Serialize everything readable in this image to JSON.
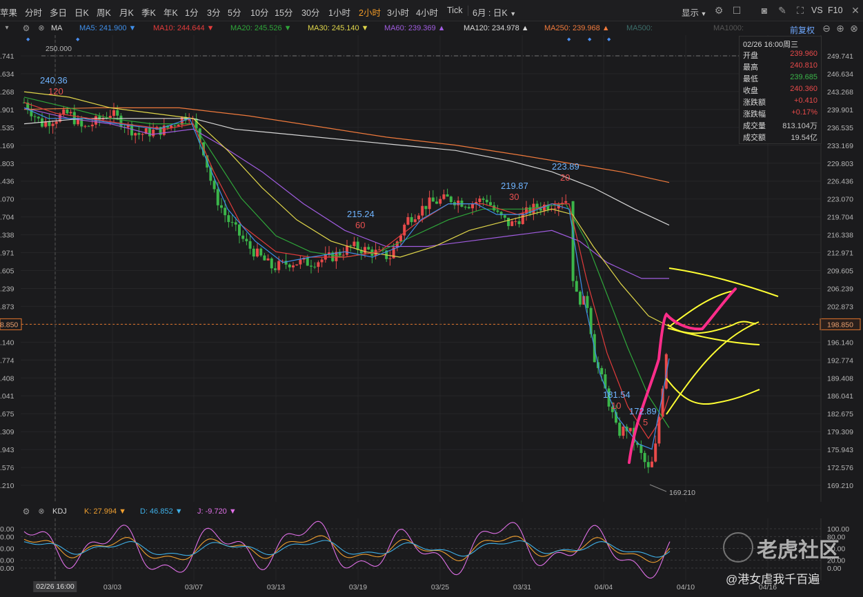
{
  "toolbar": {
    "symbol": "苹果",
    "periods": [
      "分时",
      "多日",
      "日K",
      "周K",
      "月K",
      "季K",
      "年K",
      "1分",
      "3分",
      "5分",
      "10分",
      "15分",
      "30分",
      "1小时",
      "2小时",
      "3小时",
      "4小时",
      "Tick"
    ],
    "active_period": "2小时",
    "range_select": "6月 : 日K",
    "display": "显示",
    "vs_label": "VS",
    "f10_label": "F10"
  },
  "ma_bar": {
    "indicator": "MA",
    "items": [
      {
        "name": "MA5",
        "value": "241.900",
        "color": "#3f8ee8",
        "arrow": "▼"
      },
      {
        "name": "MA10",
        "value": "244.644",
        "color": "#e23b3b",
        "arrow": "▼"
      },
      {
        "name": "MA20",
        "value": "245.526",
        "color": "#2fa63a",
        "arrow": "▼"
      },
      {
        "name": "MA30",
        "value": "245.140",
        "color": "#e0d64a",
        "arrow": "▼"
      },
      {
        "name": "MA60",
        "value": "239.369",
        "color": "#a05ce0",
        "arrow": "▲"
      },
      {
        "name": "MA120",
        "value": "234.978",
        "color": "#d8d8d8",
        "arrow": "▲"
      },
      {
        "name": "MA250",
        "value": "239.968",
        "color": "#f07a3c",
        "arrow": "▲"
      },
      {
        "name": "MA500",
        "value": "",
        "color": "#3c6e6a",
        "arrow": ""
      },
      {
        "name": "MA1000",
        "value": "",
        "color": "#555555",
        "arrow": ""
      }
    ],
    "adjust": "前复权"
  },
  "y_axis_right": [
    "249.741",
    "246.634",
    "243.268",
    "239.901",
    "236.535",
    "233.169",
    "229.803",
    "226.436",
    "223.070",
    "219.704",
    "216.338",
    "212.971",
    "209.605",
    "206.239",
    "202.873",
    "198.850",
    "196.140",
    "192.774",
    "189.408",
    "186.041",
    "182.675",
    "179.309",
    "175.943",
    "172.576",
    "169.210"
  ],
  "y_axis_left": [
    ".741",
    ".634",
    ".268",
    ".901",
    ".535",
    ".169",
    ".803",
    ".436",
    ".070",
    ".704",
    ".338",
    ".971",
    ".605",
    ".239",
    ".873",
    "8.850",
    ".140",
    ".774",
    ".408",
    ".041",
    ".675",
    ".309",
    ".943",
    ".576",
    ".210"
  ],
  "current_price": "198.850",
  "info_box": {
    "header": "02/26 16:00周三",
    "rows": [
      {
        "k": "开盘",
        "v": "239.960",
        "c": "#e84a4a"
      },
      {
        "k": "最高",
        "v": "240.810",
        "c": "#e84a4a"
      },
      {
        "k": "最低",
        "v": "239.685",
        "c": "#3bb54a"
      },
      {
        "k": "收盘",
        "v": "240.360",
        "c": "#e84a4a"
      },
      {
        "k": "涨跌额",
        "v": "+0.410",
        "c": "#e84a4a"
      },
      {
        "k": "涨跌幅",
        "v": "+0.17%",
        "c": "#e84a4a"
      },
      {
        "k": "成交量",
        "v": "813.104万",
        "c": "#c8c8c8"
      },
      {
        "k": "成交额",
        "v": "19.54亿",
        "c": "#c8c8c8"
      }
    ]
  },
  "annotations": {
    "high_mark": "250.000",
    "low_mark": "169.210",
    "labels": [
      {
        "price": "240.36",
        "n": "120"
      },
      {
        "price": "215.24",
        "n": "60"
      },
      {
        "price": "219.87",
        "n": "30"
      },
      {
        "price": "223.89",
        "n": "20"
      },
      {
        "price": "181.54",
        "n": "10"
      },
      {
        "price": "172.89",
        "n": "5"
      }
    ]
  },
  "kdj_bar": {
    "indicator": "KDJ",
    "k": {
      "name": "K:",
      "value": "27.994",
      "color": "#f0a030",
      "arrow": "▼"
    },
    "d": {
      "name": "D:",
      "value": "46.852",
      "color": "#3fb0e8",
      "arrow": "▼"
    },
    "j": {
      "name": "J:",
      "value": "-9.720",
      "color": "#e070e8",
      "arrow": "▼"
    }
  },
  "kdj_axis_right": [
    "100.00",
    "80.00",
    "50.00",
    "20.00",
    "0.00"
  ],
  "kdj_axis_left": [
    "0.00",
    "0.00",
    "0.00",
    "0.00",
    "0.00"
  ],
  "x_axis": [
    "02/26 16:00",
    "03/03",
    "03/07",
    "03/13",
    "03/19",
    "03/25",
    "03/31",
    "04/04",
    "04/10",
    "04/16"
  ],
  "watermark": {
    "brand": "老虎社区",
    "user": "@港女虐我千百遍"
  },
  "colors": {
    "up": "#e84a4a",
    "down": "#3bb54a",
    "pen": "#ff2d8a",
    "drawn": "#ffff33"
  }
}
